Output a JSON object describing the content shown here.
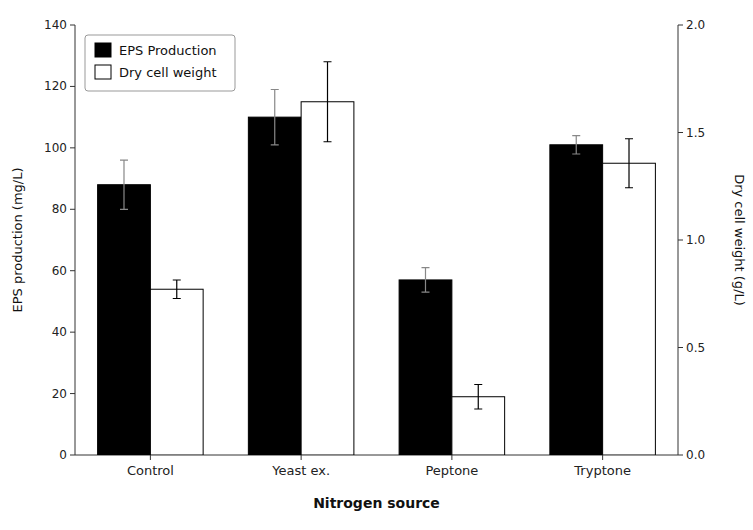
{
  "chart_data": {
    "type": "bar",
    "xlabel": "Nitrogen source",
    "ylabel": "EPS production (mg/L)",
    "y2label": "Dry cell weight (g/L)",
    "categories": [
      "Control",
      "Yeast ex.",
      "Peptone",
      "Tryptone"
    ],
    "series": [
      {
        "name": "EPS Production",
        "color": "#000000",
        "values": [
          88,
          110,
          57,
          101
        ],
        "errors": [
          8,
          9,
          4,
          3
        ]
      },
      {
        "name": "Dry cell weight",
        "color": "#ffffff",
        "axis": "y2",
        "values": [
          0.771,
          1.643,
          0.271,
          1.357
        ],
        "errors": [
          0.043,
          0.186,
          0.057,
          0.114
        ]
      }
    ],
    "ylim": [
      0,
      140
    ],
    "yticks": [
      0,
      20,
      40,
      60,
      80,
      100,
      120,
      140
    ],
    "y2lim": [
      0,
      2.0
    ],
    "y2ticks": [
      {
        "value": 0.0,
        "label": "0.0"
      },
      0.5,
      {
        "value": 1.0,
        "label": "1.0"
      },
      1.5,
      {
        "value": 2.0,
        "label": "2.0"
      }
    ],
    "legend": "upper left"
  }
}
